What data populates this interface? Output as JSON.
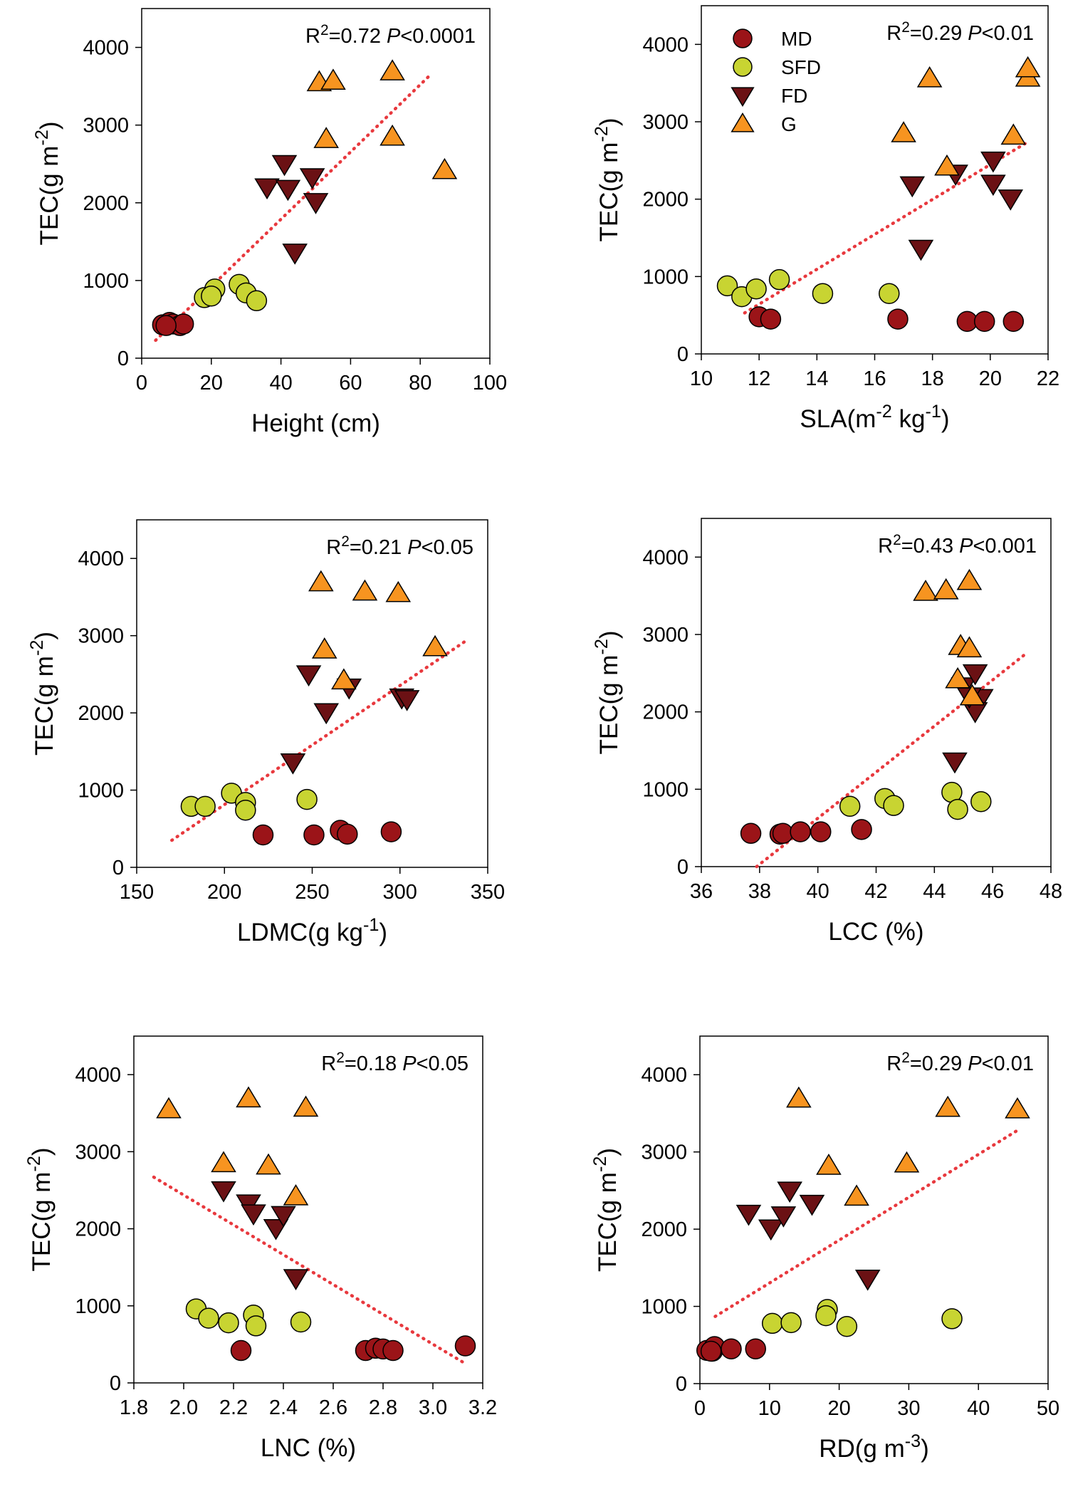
{
  "figure": {
    "legend": [
      {
        "key": "MD",
        "label": "MD",
        "marker": "circle",
        "fill": "#9b1418"
      },
      {
        "key": "SFD",
        "label": "SFD",
        "marker": "circle",
        "fill": "#c8d432"
      },
      {
        "key": "FD",
        "label": "FD",
        "marker": "triangle-down",
        "fill": "#6b1114"
      },
      {
        "key": "G",
        "label": "G",
        "marker": "triangle-up",
        "fill": "#f79420"
      }
    ],
    "colors": {
      "trend_line": "#e8393e",
      "marker_stroke": "#000000",
      "frame": "#000000"
    }
  },
  "chart_data": [
    {
      "id": "height",
      "type": "scatter",
      "xlabel": "Height (cm)",
      "ylabel": "TEC(g m-2)",
      "xlim": [
        0,
        100
      ],
      "ylim": [
        0,
        4500
      ],
      "xticks": [
        0,
        20,
        40,
        60,
        80,
        100
      ],
      "yticks": [
        0,
        1000,
        2000,
        3000,
        4000
      ],
      "stat": {
        "r2": "R2=0.72",
        "p": "P<0.0001"
      },
      "trend": {
        "x": [
          4,
          83
        ],
        "y": [
          230,
          3650
        ]
      },
      "series": [
        {
          "name": "MD",
          "points": [
            [
              6,
              430
            ],
            [
              8,
              460
            ],
            [
              9,
              440
            ],
            [
              11,
              420
            ],
            [
              12,
              440
            ],
            [
              7,
              420
            ]
          ]
        },
        {
          "name": "SFD",
          "points": [
            [
              18,
              780
            ],
            [
              21,
              890
            ],
            [
              20,
              800
            ],
            [
              28,
              950
            ],
            [
              30,
              840
            ],
            [
              33,
              740
            ]
          ]
        },
        {
          "name": "FD",
          "points": [
            [
              36,
              2200
            ],
            [
              41,
              2500
            ],
            [
              42,
              2180
            ],
            [
              49,
              2330
            ],
            [
              50,
              2010
            ],
            [
              44,
              1360
            ]
          ]
        },
        {
          "name": "G",
          "points": [
            [
              51,
              3550
            ],
            [
              55,
              3570
            ],
            [
              72,
              3690
            ],
            [
              53,
              2820
            ],
            [
              72,
              2850
            ],
            [
              87,
              2420
            ]
          ]
        }
      ]
    },
    {
      "id": "sla",
      "type": "scatter",
      "xlabel": "SLA(m-2 kg-1)",
      "ylabel": "TEC(g m-2)",
      "xlim": [
        10,
        22
      ],
      "ylim": [
        0,
        4500
      ],
      "xticks": [
        10,
        12,
        14,
        16,
        18,
        20,
        22
      ],
      "yticks": [
        0,
        1000,
        2000,
        3000,
        4000
      ],
      "stat": {
        "r2": "R2=0.29",
        "p": "P<0.01"
      },
      "trend": {
        "x": [
          11.5,
          21.3
        ],
        "y": [
          530,
          2740
        ]
      },
      "series": [
        {
          "name": "MD",
          "points": [
            [
              12.0,
              480
            ],
            [
              12.4,
              450
            ],
            [
              16.8,
              450
            ],
            [
              19.2,
              420
            ],
            [
              19.8,
              420
            ],
            [
              20.8,
              420
            ]
          ]
        },
        {
          "name": "SFD",
          "points": [
            [
              10.9,
              880
            ],
            [
              11.4,
              740
            ],
            [
              11.9,
              840
            ],
            [
              12.7,
              960
            ],
            [
              14.2,
              780
            ],
            [
              16.5,
              780
            ]
          ]
        },
        {
          "name": "FD",
          "points": [
            [
              17.3,
              2180
            ],
            [
              17.6,
              1360
            ],
            [
              18.8,
              2330
            ],
            [
              20.1,
              2500
            ],
            [
              20.1,
              2200
            ],
            [
              20.7,
              2010
            ]
          ]
        },
        {
          "name": "G",
          "points": [
            [
              17.0,
              2850
            ],
            [
              17.9,
              3560
            ],
            [
              18.5,
              2420
            ],
            [
              20.8,
              2820
            ],
            [
              21.3,
              3570
            ],
            [
              21.3,
              3690
            ]
          ]
        }
      ]
    },
    {
      "id": "ldmc",
      "type": "scatter",
      "xlabel": "LDMC(g kg-1)",
      "ylabel": "TEC(g m-2)",
      "xlim": [
        150,
        350
      ],
      "ylim": [
        0,
        4500
      ],
      "xticks": [
        150,
        200,
        250,
        300,
        350
      ],
      "yticks": [
        0,
        1000,
        2000,
        3000,
        4000
      ],
      "stat": {
        "r2": "R2=0.21",
        "p": "P<0.05"
      },
      "trend": {
        "x": [
          170,
          338
        ],
        "y": [
          350,
          2940
        ]
      },
      "series": [
        {
          "name": "MD",
          "points": [
            [
              222,
              420
            ],
            [
              251,
              420
            ],
            [
              266,
              480
            ],
            [
              270,
              430
            ],
            [
              295,
              460
            ]
          ]
        },
        {
          "name": "SFD",
          "points": [
            [
              181,
              790
            ],
            [
              189,
              790
            ],
            [
              204,
              960
            ],
            [
              212,
              840
            ],
            [
              212,
              740
            ],
            [
              247,
              880
            ]
          ]
        },
        {
          "name": "FD",
          "points": [
            [
              239,
              1360
            ],
            [
              248,
              2500
            ],
            [
              258,
              2010
            ],
            [
              271,
              2330
            ],
            [
              301,
              2200
            ],
            [
              304,
              2180
            ]
          ]
        },
        {
          "name": "G",
          "points": [
            [
              255,
              3690
            ],
            [
              257,
              2820
            ],
            [
              280,
              3570
            ],
            [
              299,
              3550
            ],
            [
              268,
              2420
            ],
            [
              320,
              2850
            ]
          ]
        }
      ]
    },
    {
      "id": "lcc",
      "type": "scatter",
      "xlabel": "LCC (%)",
      "ylabel": "TEC(g m-2)",
      "xlim": [
        36,
        48
      ],
      "ylim": [
        0,
        4500
      ],
      "xticks": [
        36,
        38,
        40,
        42,
        44,
        46,
        48
      ],
      "yticks": [
        0,
        1000,
        2000,
        3000,
        4000
      ],
      "stat": {
        "r2": "R2=0.43",
        "p": "P<0.001"
      },
      "trend": {
        "x": [
          37.9,
          47.1
        ],
        "y": [
          0,
          2740
        ]
      },
      "series": [
        {
          "name": "MD",
          "points": [
            [
              37.7,
              430
            ],
            [
              38.7,
              420
            ],
            [
              38.8,
              430
            ],
            [
              39.4,
              450
            ],
            [
              40.1,
              450
            ],
            [
              41.5,
              480
            ]
          ]
        },
        {
          "name": "SFD",
          "points": [
            [
              41.1,
              780
            ],
            [
              42.3,
              880
            ],
            [
              42.6,
              790
            ],
            [
              44.6,
              960
            ],
            [
              44.8,
              740
            ],
            [
              45.6,
              840
            ]
          ]
        },
        {
          "name": "FD",
          "points": [
            [
              44.7,
              1360
            ],
            [
              45.0,
              2330
            ],
            [
              45.4,
              2500
            ],
            [
              45.6,
              2180
            ],
            [
              45.4,
              2010
            ],
            [
              45.2,
              2200
            ]
          ]
        },
        {
          "name": "G",
          "points": [
            [
              43.7,
              3550
            ],
            [
              44.4,
              3570
            ],
            [
              45.2,
              3690
            ],
            [
              44.9,
              2850
            ],
            [
              45.2,
              2820
            ],
            [
              44.8,
              2420
            ],
            [
              45.3,
              2200
            ]
          ]
        }
      ]
    },
    {
      "id": "lnc",
      "type": "scatter",
      "xlabel": "LNC (%)",
      "ylabel": "TEC(g m-2)",
      "xlim": [
        1.8,
        3.2
      ],
      "ylim": [
        0,
        4500
      ],
      "xticks": [
        1.8,
        2.0,
        2.2,
        2.4,
        2.6,
        2.8,
        3.0,
        3.2
      ],
      "yticks": [
        0,
        1000,
        2000,
        3000,
        4000
      ],
      "stat": {
        "r2": "R2=0.18",
        "p": "P<0.05"
      },
      "trend": {
        "x": [
          1.88,
          3.12
        ],
        "y": [
          2670,
          270
        ]
      },
      "series": [
        {
          "name": "MD",
          "points": [
            [
              2.23,
              420
            ],
            [
              2.73,
              420
            ],
            [
              2.77,
              450
            ],
            [
              2.8,
              440
            ],
            [
              2.84,
              420
            ],
            [
              3.13,
              480
            ]
          ]
        },
        {
          "name": "SFD",
          "points": [
            [
              2.05,
              960
            ],
            [
              2.1,
              840
            ],
            [
              2.18,
              780
            ],
            [
              2.28,
              880
            ],
            [
              2.29,
              740
            ],
            [
              2.47,
              790
            ]
          ]
        },
        {
          "name": "FD",
          "points": [
            [
              2.16,
              2500
            ],
            [
              2.26,
              2330
            ],
            [
              2.28,
              2200
            ],
            [
              2.37,
              2010
            ],
            [
              2.4,
              2180
            ],
            [
              2.45,
              1360
            ]
          ]
        },
        {
          "name": "G",
          "points": [
            [
              1.94,
              3550
            ],
            [
              2.16,
              2850
            ],
            [
              2.26,
              3690
            ],
            [
              2.34,
              2820
            ],
            [
              2.45,
              2420
            ],
            [
              2.49,
              3570
            ]
          ]
        }
      ]
    },
    {
      "id": "rd",
      "type": "scatter",
      "xlabel": "RD(g m-3)",
      "ylabel": "TEC(g m-2)",
      "xlim": [
        0,
        50
      ],
      "ylim": [
        0,
        4500
      ],
      "xticks": [
        0,
        10,
        20,
        30,
        40,
        50
      ],
      "yticks": [
        0,
        1000,
        2000,
        3000,
        4000
      ],
      "stat": {
        "r2": "R2=0.29",
        "p": "P<0.01"
      },
      "trend": {
        "x": [
          2.2,
          45.8
        ],
        "y": [
          870,
          3290
        ]
      },
      "series": [
        {
          "name": "MD",
          "points": [
            [
              1.0,
              430
            ],
            [
              1.8,
              420
            ],
            [
              2.1,
              480
            ],
            [
              4.5,
              450
            ],
            [
              8.0,
              450
            ],
            [
              1.6,
              420
            ]
          ]
        },
        {
          "name": "SFD",
          "points": [
            [
              10.4,
              780
            ],
            [
              13.1,
              790
            ],
            [
              18.3,
              960
            ],
            [
              18.1,
              880
            ],
            [
              21.1,
              740
            ],
            [
              36.2,
              840
            ]
          ]
        },
        {
          "name": "FD",
          "points": [
            [
              7.0,
              2200
            ],
            [
              10.2,
              2010
            ],
            [
              12.0,
              2180
            ],
            [
              12.9,
              2500
            ],
            [
              16.1,
              2330
            ],
            [
              24.1,
              1360
            ]
          ]
        },
        {
          "name": "G",
          "points": [
            [
              14.2,
              3690
            ],
            [
              18.5,
              2820
            ],
            [
              22.5,
              2420
            ],
            [
              29.7,
              2850
            ],
            [
              35.6,
              3570
            ],
            [
              45.6,
              3550
            ]
          ]
        }
      ]
    }
  ]
}
